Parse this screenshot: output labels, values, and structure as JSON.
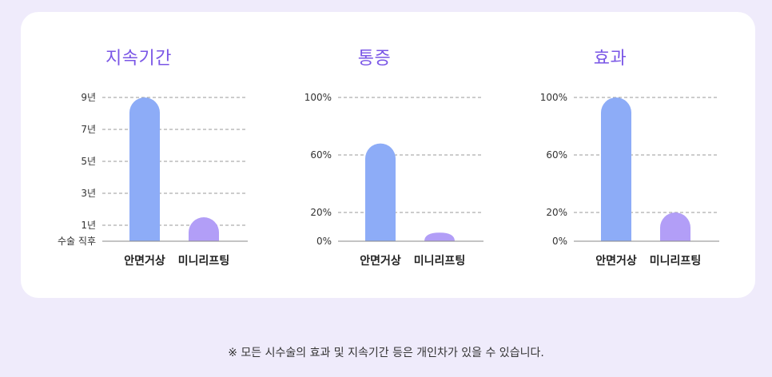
{
  "chart_data": [
    {
      "type": "bar",
      "title": "지속기간",
      "categories": [
        "안면거상",
        "미니리프팅"
      ],
      "values": [
        9,
        1.5
      ],
      "ylim": [
        0,
        9
      ],
      "yticks": [
        {
          "value": 0,
          "label": "수술 직후"
        },
        {
          "value": 1,
          "label": "1년"
        },
        {
          "value": 3,
          "label": "3년"
        },
        {
          "value": 5,
          "label": "5년"
        },
        {
          "value": 7,
          "label": "7년"
        },
        {
          "value": 9,
          "label": "9년"
        }
      ],
      "grid": true,
      "colors": [
        "#8dacf7",
        "#b29ef7"
      ]
    },
    {
      "type": "bar",
      "title": "통증",
      "categories": [
        "안면거상",
        "미니리프팅"
      ],
      "values": [
        68,
        6
      ],
      "ylim": [
        0,
        100
      ],
      "yticks": [
        {
          "value": 0,
          "label": "0%"
        },
        {
          "value": 20,
          "label": "20%"
        },
        {
          "value": 60,
          "label": "60%"
        },
        {
          "value": 100,
          "label": "100%"
        }
      ],
      "grid": true,
      "colors": [
        "#8dacf7",
        "#b29ef7"
      ]
    },
    {
      "type": "bar",
      "title": "효과",
      "categories": [
        "안면거상",
        "미니리프팅"
      ],
      "values": [
        100,
        20
      ],
      "ylim": [
        0,
        100
      ],
      "yticks": [
        {
          "value": 0,
          "label": "0%"
        },
        {
          "value": 20,
          "label": "20%"
        },
        {
          "value": 60,
          "label": "60%"
        },
        {
          "value": 100,
          "label": "100%"
        }
      ],
      "grid": true,
      "colors": [
        "#8dacf7",
        "#b29ef7"
      ]
    }
  ],
  "footnote": "※ 모든 시수술의 효과 및 지속기간 등은 개인차가 있을 수 있습니다."
}
